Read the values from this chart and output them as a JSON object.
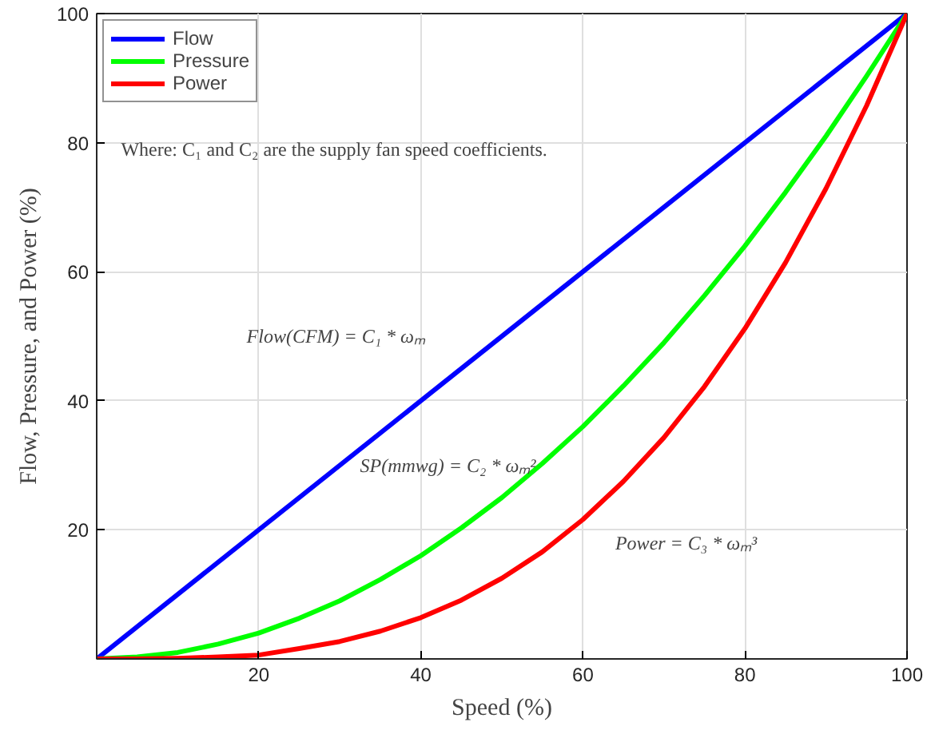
{
  "chart_data": {
    "type": "line",
    "xlabel": "Speed (%)",
    "ylabel": "Flow, Pressure, and Power (%)",
    "xlim": [
      0,
      100
    ],
    "ylim": [
      0,
      100
    ],
    "xticks": [
      20,
      40,
      60,
      80,
      100
    ],
    "yticks": [
      20,
      40,
      60,
      80,
      100
    ],
    "grid": true,
    "legend": "top left",
    "line_style": "solid",
    "series": [
      {
        "name": "Flow",
        "color": "#0000ff",
        "x": [
          0,
          100
        ],
        "values": [
          0,
          100
        ]
      },
      {
        "name": "Pressure",
        "color": "#00ff00",
        "x": [
          0,
          5,
          10,
          15,
          20,
          25,
          30,
          35,
          40,
          45,
          50,
          55,
          60,
          65,
          70,
          75,
          80,
          85,
          90,
          95,
          100
        ],
        "values": [
          0,
          0.3,
          1,
          2.3,
          4,
          6.3,
          9,
          12.3,
          16,
          20.3,
          25,
          30.3,
          36,
          42.3,
          49,
          56.3,
          64,
          72.3,
          81,
          90.3,
          100
        ]
      },
      {
        "name": "Power",
        "color": "#ff0000",
        "x": [
          0,
          5,
          10,
          15,
          20,
          25,
          30,
          35,
          40,
          45,
          50,
          55,
          60,
          65,
          70,
          75,
          80,
          85,
          90,
          95,
          100
        ],
        "values": [
          0,
          0,
          0.1,
          0.3,
          0.6,
          1.6,
          2.7,
          4.3,
          6.4,
          9.1,
          12.5,
          16.6,
          21.6,
          27.5,
          34.3,
          42.2,
          51.2,
          61.4,
          72.9,
          85.7,
          100
        ]
      }
    ],
    "annotations": [
      "Where: C₁ and C₂ are the supply fan speed coefficients.",
      "Flow(CFM) = C₁ * ωₘ",
      "SP(mmwg) = C₂ * ωₘ²",
      "Power = C₃ * ωₘ³"
    ]
  }
}
